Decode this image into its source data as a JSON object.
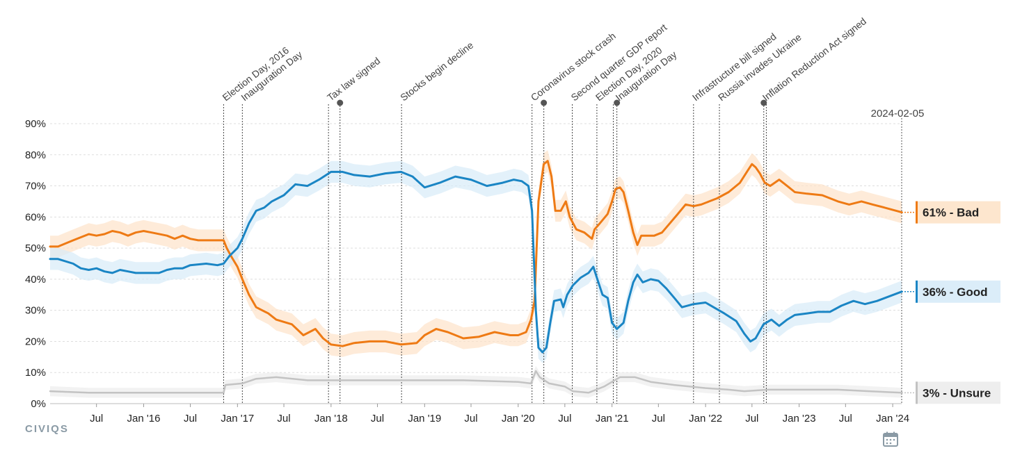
{
  "chart_data": {
    "type": "line",
    "title": "",
    "ylim": [
      0,
      90
    ],
    "y_ticks": [
      "0%",
      "10%",
      "20%",
      "30%",
      "40%",
      "50%",
      "60%",
      "70%",
      "80%",
      "90%"
    ],
    "x_range": [
      "2015-01-01",
      "2024-02-05"
    ],
    "x_ticks": [
      {
        "label": "Jul",
        "date": "2015-07-01"
      },
      {
        "label": "Jan '16",
        "date": "2016-01-01"
      },
      {
        "label": "Jul",
        "date": "2016-07-01"
      },
      {
        "label": "Jan '17",
        "date": "2017-01-01"
      },
      {
        "label": "Jul",
        "date": "2017-07-01"
      },
      {
        "label": "Jan '18",
        "date": "2018-01-01"
      },
      {
        "label": "Jul",
        "date": "2018-07-01"
      },
      {
        "label": "Jan '19",
        "date": "2019-01-01"
      },
      {
        "label": "Jul",
        "date": "2019-07-01"
      },
      {
        "label": "Jan '20",
        "date": "2020-01-01"
      },
      {
        "label": "Jul",
        "date": "2020-07-01"
      },
      {
        "label": "Jan '21",
        "date": "2021-01-01"
      },
      {
        "label": "Jul",
        "date": "2021-07-01"
      },
      {
        "label": "Jan '22",
        "date": "2022-01-01"
      },
      {
        "label": "Jul",
        "date": "2022-07-01"
      },
      {
        "label": "Jan '23",
        "date": "2023-01-01"
      },
      {
        "label": "Jul",
        "date": "2023-07-01"
      },
      {
        "label": "Jan '24",
        "date": "2024-01-01"
      }
    ],
    "grid": true,
    "end_date_label": "2024-02-05",
    "events": [
      {
        "label": "Election Day, 2016",
        "date": "2016-11-08",
        "dot": false
      },
      {
        "label": "Inauguration Day",
        "date": "2017-01-20",
        "dot": false
      },
      {
        "label": "Tax law signed",
        "date": "2017-12-22",
        "dot": false
      },
      {
        "label": "",
        "date": "2018-02-05",
        "dot": true
      },
      {
        "label": "Stocks begin decline",
        "date": "2018-10-03",
        "dot": false
      },
      {
        "label": "Coronavirus stock crash",
        "date": "2020-02-24",
        "dot": false
      },
      {
        "label": "",
        "date": "2020-04-10",
        "dot": true
      },
      {
        "label": "Second quarter GDP report",
        "date": "2020-07-30",
        "dot": false
      },
      {
        "label": "Election Day, 2020",
        "date": "2020-11-03",
        "dot": false
      },
      {
        "label": "",
        "date": "2021-01-06",
        "dot": false
      },
      {
        "label": "Inauguration Day",
        "date": "2021-01-20",
        "dot": true
      },
      {
        "label": "Infrastructure bill signed",
        "date": "2021-11-15",
        "dot": false
      },
      {
        "label": "Russia invades Ukraine",
        "date": "2022-02-24",
        "dot": false
      },
      {
        "label": "Inflation Reduction Act signed",
        "date": "2022-08-16",
        "dot": true
      },
      {
        "label": "",
        "date": "2022-08-26",
        "dot": false
      }
    ],
    "series": [
      {
        "name": "Bad",
        "color": "#ee7a14",
        "band_color": "#fde3c9",
        "end_label": "61% - Bad",
        "points": [
          [
            "2015-01-01",
            50.5
          ],
          [
            "2015-02-01",
            50.5
          ],
          [
            "2015-04-01",
            52.5
          ],
          [
            "2015-06-01",
            54.5
          ],
          [
            "2015-07-01",
            54
          ],
          [
            "2015-08-01",
            54.5
          ],
          [
            "2015-09-01",
            55.5
          ],
          [
            "2015-10-01",
            55
          ],
          [
            "2015-11-01",
            54
          ],
          [
            "2015-12-01",
            55
          ],
          [
            "2016-01-01",
            55.5
          ],
          [
            "2016-02-01",
            55
          ],
          [
            "2016-04-01",
            54
          ],
          [
            "2016-05-01",
            53
          ],
          [
            "2016-06-01",
            54
          ],
          [
            "2016-07-01",
            53
          ],
          [
            "2016-08-01",
            52.5
          ],
          [
            "2016-10-01",
            52.5
          ],
          [
            "2016-11-08",
            52.5
          ],
          [
            "2016-11-20",
            50
          ],
          [
            "2016-12-10",
            47
          ],
          [
            "2017-01-01",
            44
          ],
          [
            "2017-01-20",
            40
          ],
          [
            "2017-02-15",
            35
          ],
          [
            "2017-03-15",
            31
          ],
          [
            "2017-05-01",
            29
          ],
          [
            "2017-06-01",
            27
          ],
          [
            "2017-08-01",
            25.5
          ],
          [
            "2017-09-15",
            22
          ],
          [
            "2017-11-01",
            24
          ],
          [
            "2017-12-01",
            21
          ],
          [
            "2018-01-01",
            19
          ],
          [
            "2018-02-15",
            18.5
          ],
          [
            "2018-04-01",
            19.5
          ],
          [
            "2018-06-01",
            20
          ],
          [
            "2018-08-01",
            20
          ],
          [
            "2018-10-01",
            19
          ],
          [
            "2018-12-01",
            19.5
          ],
          [
            "2019-01-01",
            22
          ],
          [
            "2019-02-15",
            24
          ],
          [
            "2019-04-01",
            23
          ],
          [
            "2019-06-01",
            21
          ],
          [
            "2019-08-01",
            21.5
          ],
          [
            "2019-10-01",
            23
          ],
          [
            "2019-12-01",
            22
          ],
          [
            "2020-01-01",
            22
          ],
          [
            "2020-02-01",
            23
          ],
          [
            "2020-02-20",
            27
          ],
          [
            "2020-03-05",
            33
          ],
          [
            "2020-03-20",
            65
          ],
          [
            "2020-04-10",
            77
          ],
          [
            "2020-04-25",
            78
          ],
          [
            "2020-05-10",
            73
          ],
          [
            "2020-05-25",
            62
          ],
          [
            "2020-06-15",
            62
          ],
          [
            "2020-07-05",
            65
          ],
          [
            "2020-07-20",
            60
          ],
          [
            "2020-08-15",
            56
          ],
          [
            "2020-09-15",
            55
          ],
          [
            "2020-10-15",
            53
          ],
          [
            "2020-10-25",
            56
          ],
          [
            "2020-11-15",
            58
          ],
          [
            "2020-12-15",
            61
          ],
          [
            "2021-01-01",
            65
          ],
          [
            "2021-01-15",
            69
          ],
          [
            "2021-02-01",
            69.5
          ],
          [
            "2021-02-15",
            68
          ],
          [
            "2021-03-05",
            62
          ],
          [
            "2021-03-25",
            55
          ],
          [
            "2021-04-10",
            51
          ],
          [
            "2021-04-25",
            54
          ],
          [
            "2021-05-15",
            54
          ],
          [
            "2021-06-15",
            54
          ],
          [
            "2021-07-15",
            55
          ],
          [
            "2021-08-15",
            58
          ],
          [
            "2021-09-15",
            61
          ],
          [
            "2021-10-15",
            64
          ],
          [
            "2021-11-15",
            63.5
          ],
          [
            "2021-12-15",
            64
          ],
          [
            "2022-01-15",
            65
          ],
          [
            "2022-02-15",
            66
          ],
          [
            "2022-04-01",
            68
          ],
          [
            "2022-05-15",
            71
          ],
          [
            "2022-06-15",
            75
          ],
          [
            "2022-07-01",
            77
          ],
          [
            "2022-07-15",
            76
          ],
          [
            "2022-08-01",
            74
          ],
          [
            "2022-08-20",
            71
          ],
          [
            "2022-09-10",
            70
          ],
          [
            "2022-10-15",
            72
          ],
          [
            "2022-11-15",
            70
          ],
          [
            "2022-12-15",
            68
          ],
          [
            "2023-02-01",
            67.5
          ],
          [
            "2023-04-01",
            67
          ],
          [
            "2023-06-01",
            65
          ],
          [
            "2023-07-15",
            64
          ],
          [
            "2023-09-01",
            65
          ],
          [
            "2023-10-15",
            64
          ],
          [
            "2023-12-01",
            63
          ],
          [
            "2024-02-05",
            61.5
          ]
        ]
      },
      {
        "name": "Good",
        "color": "#1a85c4",
        "band_color": "#d7ebf8",
        "end_label": "36% - Good",
        "points": [
          [
            "2015-01-01",
            46.5
          ],
          [
            "2015-02-01",
            46.5
          ],
          [
            "2015-04-01",
            45
          ],
          [
            "2015-05-01",
            43.5
          ],
          [
            "2015-06-01",
            43
          ],
          [
            "2015-07-01",
            43.5
          ],
          [
            "2015-08-01",
            42.5
          ],
          [
            "2015-09-01",
            42
          ],
          [
            "2015-10-01",
            43
          ],
          [
            "2015-11-01",
            42.5
          ],
          [
            "2015-12-01",
            42
          ],
          [
            "2016-01-01",
            42
          ],
          [
            "2016-03-01",
            42
          ],
          [
            "2016-04-01",
            43
          ],
          [
            "2016-05-01",
            43.5
          ],
          [
            "2016-06-01",
            43.5
          ],
          [
            "2016-07-01",
            44.5
          ],
          [
            "2016-09-01",
            45
          ],
          [
            "2016-10-15",
            44.5
          ],
          [
            "2016-11-08",
            45
          ],
          [
            "2016-12-01",
            47.5
          ],
          [
            "2017-01-01",
            50
          ],
          [
            "2017-01-20",
            53
          ],
          [
            "2017-02-15",
            58
          ],
          [
            "2017-03-15",
            62
          ],
          [
            "2017-04-15",
            63
          ],
          [
            "2017-05-15",
            65
          ],
          [
            "2017-07-01",
            67
          ],
          [
            "2017-08-15",
            70.5
          ],
          [
            "2017-10-01",
            70
          ],
          [
            "2017-11-15",
            72
          ],
          [
            "2018-01-01",
            74.5
          ],
          [
            "2018-02-15",
            74.5
          ],
          [
            "2018-04-01",
            73.5
          ],
          [
            "2018-06-01",
            73
          ],
          [
            "2018-08-01",
            74
          ],
          [
            "2018-10-01",
            74.5
          ],
          [
            "2018-11-15",
            73
          ],
          [
            "2019-01-01",
            69.5
          ],
          [
            "2019-03-01",
            71
          ],
          [
            "2019-05-01",
            73
          ],
          [
            "2019-07-01",
            72
          ],
          [
            "2019-09-01",
            70
          ],
          [
            "2019-11-01",
            71
          ],
          [
            "2019-12-15",
            72
          ],
          [
            "2020-01-15",
            71.5
          ],
          [
            "2020-02-10",
            70
          ],
          [
            "2020-02-24",
            62
          ],
          [
            "2020-03-10",
            30
          ],
          [
            "2020-03-20",
            18
          ],
          [
            "2020-04-05",
            16.5
          ],
          [
            "2020-04-20",
            18
          ],
          [
            "2020-05-05",
            26
          ],
          [
            "2020-05-20",
            33
          ],
          [
            "2020-06-15",
            33.5
          ],
          [
            "2020-06-25",
            31
          ],
          [
            "2020-07-10",
            35
          ],
          [
            "2020-08-01",
            38
          ],
          [
            "2020-09-01",
            40.5
          ],
          [
            "2020-10-01",
            42
          ],
          [
            "2020-10-20",
            44
          ],
          [
            "2020-11-05",
            40
          ],
          [
            "2020-11-25",
            35
          ],
          [
            "2020-12-15",
            34
          ],
          [
            "2021-01-01",
            26
          ],
          [
            "2021-01-20",
            24
          ],
          [
            "2021-02-15",
            26
          ],
          [
            "2021-03-05",
            33
          ],
          [
            "2021-03-25",
            39
          ],
          [
            "2021-04-10",
            41.5
          ],
          [
            "2021-05-01",
            39
          ],
          [
            "2021-06-01",
            40
          ],
          [
            "2021-07-01",
            39.5
          ],
          [
            "2021-08-01",
            37
          ],
          [
            "2021-09-01",
            34
          ],
          [
            "2021-10-01",
            31
          ],
          [
            "2021-11-15",
            32
          ],
          [
            "2022-01-01",
            32.5
          ],
          [
            "2022-02-01",
            31
          ],
          [
            "2022-03-15",
            29
          ],
          [
            "2022-05-01",
            26.5
          ],
          [
            "2022-06-01",
            22.5
          ],
          [
            "2022-06-25",
            20
          ],
          [
            "2022-07-15",
            21
          ],
          [
            "2022-08-15",
            25.5
          ],
          [
            "2022-09-15",
            27
          ],
          [
            "2022-10-15",
            25
          ],
          [
            "2022-11-15",
            27
          ],
          [
            "2022-12-15",
            28.5
          ],
          [
            "2023-02-01",
            29
          ],
          [
            "2023-03-15",
            29.5
          ],
          [
            "2023-05-01",
            29.5
          ],
          [
            "2023-06-15",
            31.5
          ],
          [
            "2023-08-01",
            33
          ],
          [
            "2023-09-15",
            32
          ],
          [
            "2023-11-01",
            33
          ],
          [
            "2024-02-05",
            36
          ]
        ]
      },
      {
        "name": "Unsure",
        "color": "#c3c3c3",
        "band_color": "#ececec",
        "end_label": "3% - Unsure",
        "points": [
          [
            "2015-01-01",
            4
          ],
          [
            "2015-06-01",
            3.5
          ],
          [
            "2016-01-01",
            3.5
          ],
          [
            "2016-06-01",
            3.5
          ],
          [
            "2016-11-08",
            3.5
          ],
          [
            "2016-11-15",
            6
          ],
          [
            "2017-01-20",
            6.5
          ],
          [
            "2017-03-15",
            8
          ],
          [
            "2017-06-01",
            8.5
          ],
          [
            "2017-10-01",
            7.5
          ],
          [
            "2018-01-01",
            7.5
          ],
          [
            "2018-06-01",
            7.5
          ],
          [
            "2019-01-01",
            7.5
          ],
          [
            "2019-06-01",
            7.5
          ],
          [
            "2020-01-01",
            7
          ],
          [
            "2020-02-20",
            6.5
          ],
          [
            "2020-03-10",
            10.5
          ],
          [
            "2020-03-25",
            8.5
          ],
          [
            "2020-05-01",
            6.5
          ],
          [
            "2020-07-01",
            5.5
          ],
          [
            "2020-08-01",
            4
          ],
          [
            "2020-10-01",
            3.5
          ],
          [
            "2020-12-01",
            5.5
          ],
          [
            "2021-01-01",
            7
          ],
          [
            "2021-02-01",
            8.5
          ],
          [
            "2021-04-01",
            8.5
          ],
          [
            "2021-06-01",
            7
          ],
          [
            "2021-09-01",
            6
          ],
          [
            "2022-01-01",
            5
          ],
          [
            "2022-04-01",
            4.5
          ],
          [
            "2022-06-01",
            4
          ],
          [
            "2022-09-01",
            4.5
          ],
          [
            "2023-01-01",
            4.5
          ],
          [
            "2023-06-01",
            4.5
          ],
          [
            "2023-10-01",
            4
          ],
          [
            "2024-02-05",
            3.5
          ]
        ]
      }
    ]
  },
  "branding": {
    "logo_text": "CIVIQS"
  },
  "calendar_icon": "calendar-icon"
}
